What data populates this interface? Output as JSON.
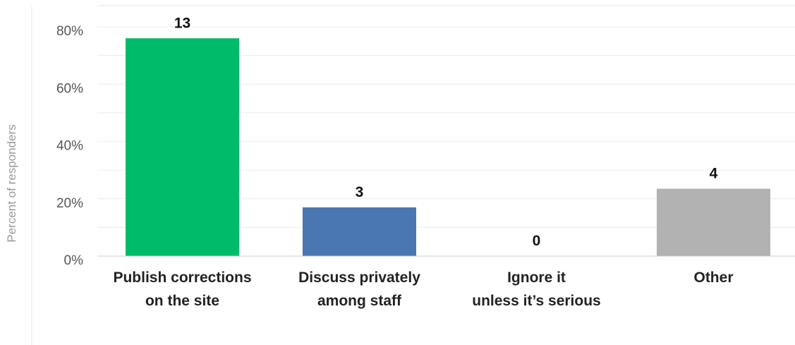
{
  "chart_data": {
    "type": "bar",
    "ylabel": "Percent of responders",
    "ylim": [
      0,
      0.85
    ],
    "yticks": [
      0,
      0.2,
      0.4,
      0.6,
      0.8
    ],
    "ytick_labels": [
      "0%",
      "20%",
      "40%",
      "60%",
      "80%"
    ],
    "grid": true,
    "categories": [
      [
        "Publish corrections",
        "on the site"
      ],
      [
        "Discuss privately",
        "among staff"
      ],
      [
        "Ignore it",
        "unless it’s serious"
      ],
      [
        "Other"
      ]
    ],
    "values": [
      0.76,
      0.17,
      0.0,
      0.235
    ],
    "data_labels": [
      "13",
      "3",
      "0",
      "4"
    ],
    "colors": [
      "#00bc6a",
      "#4a76b1",
      "#a8a8a8",
      "#b2b2b2"
    ]
  }
}
